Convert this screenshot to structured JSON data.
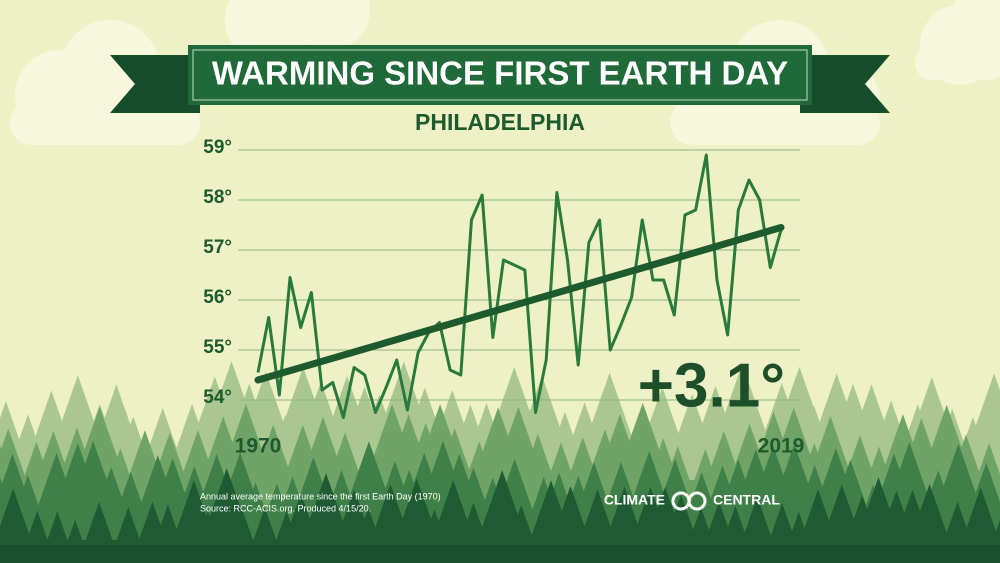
{
  "chart_data": {
    "type": "line",
    "title": "WARMING SINCE FIRST EARTH DAY",
    "subtitle": "PHILADELPHIA",
    "x": [
      1970,
      1971,
      1972,
      1973,
      1974,
      1975,
      1976,
      1977,
      1978,
      1979,
      1980,
      1981,
      1982,
      1983,
      1984,
      1985,
      1986,
      1987,
      1988,
      1989,
      1990,
      1991,
      1992,
      1993,
      1994,
      1995,
      1996,
      1997,
      1998,
      1999,
      2000,
      2001,
      2002,
      2003,
      2004,
      2005,
      2006,
      2007,
      2008,
      2009,
      2010,
      2011,
      2012,
      2013,
      2014,
      2015,
      2016,
      2017,
      2018,
      2019
    ],
    "series": [
      {
        "color": "#2a7a3c",
        "values": [
          54.55,
          55.65,
          54.1,
          56.45,
          55.45,
          56.15,
          54.2,
          54.35,
          53.65,
          54.65,
          54.5,
          53.75,
          54.25,
          54.8,
          53.8,
          54.95,
          55.35,
          55.55,
          54.6,
          54.5,
          57.6,
          58.1,
          55.25,
          56.8,
          56.7,
          56.6,
          53.75,
          54.8,
          58.15,
          56.8,
          54.7,
          57.15,
          57.6,
          55.0,
          55.5,
          56.05,
          57.6,
          56.4,
          56.4,
          55.7,
          57.7,
          57.8,
          58.9,
          56.4,
          55.3,
          57.8,
          58.4,
          58.0,
          56.65,
          57.4
        ]
      }
    ],
    "trend": {
      "color": "#1d5a2e",
      "x": [
        1970,
        2019
      ],
      "values": [
        54.4,
        57.45
      ]
    },
    "annotation": "+3.1°",
    "xlim": [
      1970,
      2019
    ],
    "xticks": [
      1970,
      2019
    ],
    "ylim": [
      53.5,
      59.2
    ],
    "yticks": [
      {
        "value": 54,
        "label": "54°"
      },
      {
        "value": 55,
        "label": "55°"
      },
      {
        "value": 56,
        "label": "56°"
      },
      {
        "value": 57,
        "label": "57°"
      },
      {
        "value": 58,
        "label": "58°"
      },
      {
        "value": 59,
        "label": "59°"
      }
    ],
    "grid": true,
    "footnote": [
      "Annual average temperature since the first Earth Day (1970)",
      "Source: RCC-ACIS.org. Produced 4/15/20."
    ],
    "brand": [
      "CLIMATE",
      "CENTRAL"
    ]
  }
}
